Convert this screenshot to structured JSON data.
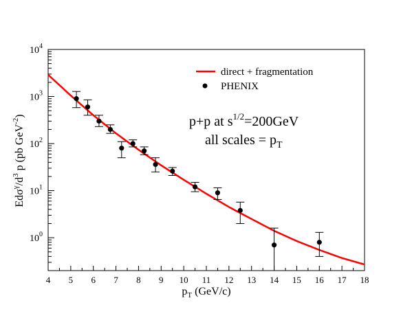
{
  "chart_data": {
    "type": "scatter",
    "xlabel": {
      "main": "p",
      "sub": "T",
      "rest": " (GeV/c)"
    },
    "ylabel": {
      "t1": "Edσ",
      "s1": "γ",
      "t2": "/d",
      "s2": "3",
      "t3": " p (pb GeV",
      "s3": "-2",
      "t4": ")"
    },
    "xlim": [
      4,
      18
    ],
    "ylim": [
      0.2,
      10000
    ],
    "yscale": "log",
    "x_ticks": [
      "4",
      "5",
      "6",
      "7",
      "8",
      "9",
      "10",
      "11",
      "12",
      "13",
      "14",
      "15",
      "16",
      "17",
      "18"
    ],
    "y_ticks": [
      {
        "base": "10",
        "exp": "0"
      },
      {
        "base": "10",
        "exp": "1"
      },
      {
        "base": "10",
        "exp": "2"
      },
      {
        "base": "10",
        "exp": "3"
      },
      {
        "base": "10",
        "exp": "4"
      }
    ],
    "legend": {
      "position": "top-right",
      "entries": [
        {
          "label": "direct + fragmentation",
          "kind": "line"
        },
        {
          "label": "PHENIX",
          "kind": "marker"
        }
      ]
    },
    "annotations": {
      "line1": {
        "t1": "p+p at s",
        "sup": "1/2",
        "t2": "=200GeV"
      },
      "line2": {
        "t1": "all scales = p",
        "sub": "T"
      }
    },
    "series": [
      {
        "name": "direct + fragmentation",
        "kind": "line",
        "color": "#ff0000",
        "x": [
          4,
          5,
          6,
          7,
          8,
          9,
          10,
          11,
          12,
          13,
          14,
          15,
          16,
          17,
          18
        ],
        "y": [
          2900,
          1050,
          400,
          165,
          74,
          34.5,
          17,
          8.6,
          4.5,
          2.5,
          1.4,
          0.85,
          0.55,
          0.37,
          0.27
        ]
      },
      {
        "name": "PHENIX",
        "kind": "points",
        "color": "#000000",
        "points": [
          {
            "x": 5.25,
            "y": 900,
            "lo": 580,
            "hi": 1280
          },
          {
            "x": 5.75,
            "y": 600,
            "lo": 400,
            "hi": 850
          },
          {
            "x": 6.25,
            "y": 300,
            "lo": 230,
            "hi": 400
          },
          {
            "x": 6.75,
            "y": 200,
            "lo": 165,
            "hi": 250
          },
          {
            "x": 7.25,
            "y": 80,
            "lo": 50,
            "hi": 110
          },
          {
            "x": 7.75,
            "y": 100,
            "lo": 85,
            "hi": 120
          },
          {
            "x": 8.25,
            "y": 70,
            "lo": 58,
            "hi": 85
          },
          {
            "x": 8.75,
            "y": 36,
            "lo": 25,
            "hi": 50
          },
          {
            "x": 9.5,
            "y": 26,
            "lo": 21,
            "hi": 31
          },
          {
            "x": 10.5,
            "y": 12,
            "lo": 9.5,
            "hi": 15
          },
          {
            "x": 11.5,
            "y": 9,
            "lo": 6.5,
            "hi": 11.5
          },
          {
            "x": 12.5,
            "y": 3.8,
            "lo": 2.0,
            "hi": 5.7
          },
          {
            "x": 14.0,
            "y": 0.7,
            "lo": 0.2,
            "hi": 1.6
          },
          {
            "x": 16.0,
            "y": 0.8,
            "lo": 0.4,
            "hi": 1.3
          }
        ]
      }
    ]
  }
}
